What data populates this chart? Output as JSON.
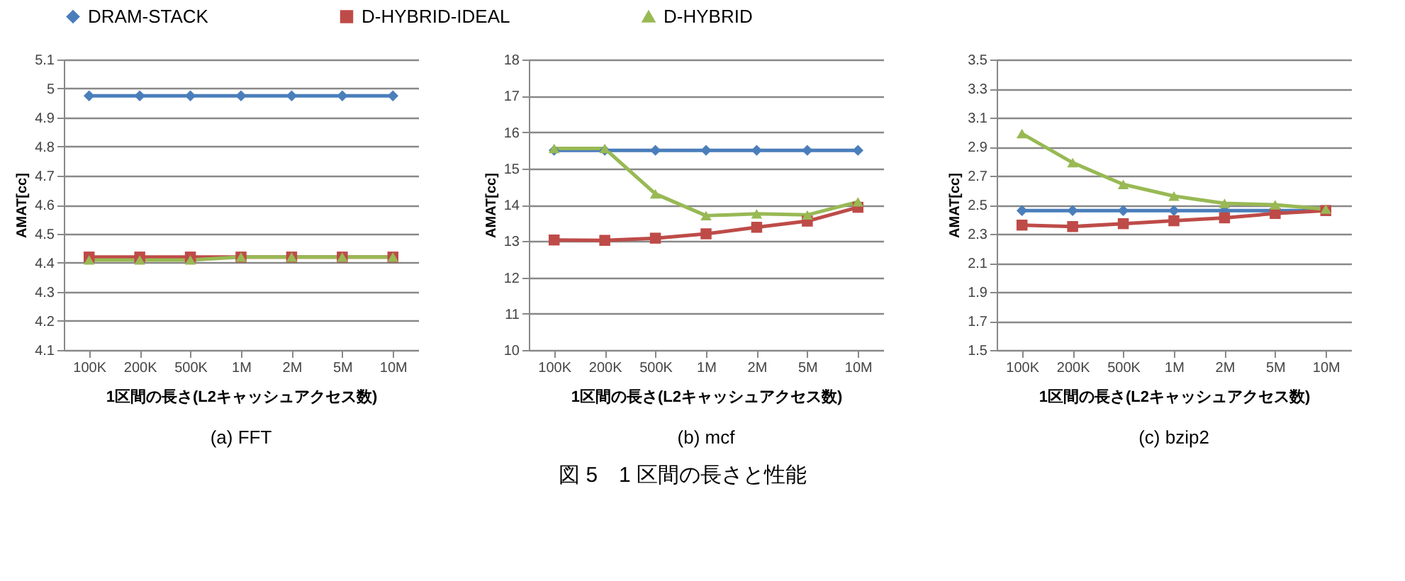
{
  "chart_data": [
    {
      "type": "line",
      "title": "(a)  FFT",
      "xlabel": "1区間の長さ(L2キャッシュアクセス数)",
      "ylabel": "AMAT[cc]",
      "categories": [
        "100K",
        "200K",
        "500K",
        "1M",
        "2M",
        "5M",
        "10M"
      ],
      "ylim": [
        4.1,
        5.1
      ],
      "yticks": [
        4.1,
        4.2,
        4.3,
        4.4,
        4.5,
        4.6,
        4.7,
        4.8,
        4.9,
        5,
        5.1
      ],
      "grid": "y",
      "legend": "top",
      "series": [
        {
          "name": "DRAM-STACK",
          "color": "#4a7ebb",
          "marker": "diamond",
          "values": [
            4.975,
            4.975,
            4.975,
            4.975,
            4.975,
            4.975,
            4.975
          ]
        },
        {
          "name": "D-HYBRID-IDEAL",
          "color": "#be4b48",
          "marker": "square",
          "values": [
            4.42,
            4.42,
            4.42,
            4.42,
            4.42,
            4.42,
            4.42
          ]
        },
        {
          "name": "D-HYBRID",
          "color": "#98b954",
          "marker": "triangle",
          "values": [
            4.41,
            4.41,
            4.41,
            4.42,
            4.42,
            4.42,
            4.42
          ]
        }
      ]
    },
    {
      "type": "line",
      "title": "(b)  mcf",
      "xlabel": "1区間の長さ(L2キャッシュアクセス数)",
      "ylabel": "AMAT[cc]",
      "categories": [
        "100K",
        "200K",
        "500K",
        "1M",
        "2M",
        "5M",
        "10M"
      ],
      "ylim": [
        10,
        18
      ],
      "yticks": [
        10,
        11,
        12,
        13,
        14,
        15,
        16,
        17,
        18
      ],
      "grid": "y",
      "legend": "top",
      "annotations": [
        "図 5　1 区間の長さと性能"
      ],
      "series": [
        {
          "name": "DRAM-STACK",
          "color": "#4a7ebb",
          "marker": "diamond",
          "values": [
            15.5,
            15.5,
            15.5,
            15.5,
            15.5,
            15.5,
            15.5
          ]
        },
        {
          "name": "D-HYBRID-IDEAL",
          "color": "#be4b48",
          "marker": "square",
          "values": [
            13.03,
            13.02,
            13.08,
            13.2,
            13.38,
            13.55,
            13.93
          ]
        },
        {
          "name": "D-HYBRID",
          "color": "#98b954",
          "marker": "triangle",
          "values": [
            15.55,
            15.55,
            14.3,
            13.7,
            13.75,
            13.72,
            14.08
          ]
        }
      ]
    },
    {
      "type": "line",
      "title": "(c)  bzip2",
      "xlabel": "1区間の長さ(L2キャッシュアクセス数)",
      "ylabel": "AMAT[cc]",
      "categories": [
        "100K",
        "200K",
        "500K",
        "1M",
        "2M",
        "5M",
        "10M"
      ],
      "ylim": [
        1.5,
        3.5
      ],
      "yticks": [
        1.5,
        1.7,
        1.9,
        2.1,
        2.3,
        2.5,
        2.7,
        2.9,
        3.1,
        3.3,
        3.5
      ],
      "grid": "y",
      "legend": "top",
      "series": [
        {
          "name": "DRAM-STACK",
          "color": "#4a7ebb",
          "marker": "diamond",
          "values": [
            2.46,
            2.46,
            2.46,
            2.46,
            2.46,
            2.46,
            2.46
          ]
        },
        {
          "name": "D-HYBRID-IDEAL",
          "color": "#be4b48",
          "marker": "square",
          "values": [
            2.36,
            2.35,
            2.37,
            2.39,
            2.41,
            2.44,
            2.46
          ]
        },
        {
          "name": "D-HYBRID",
          "color": "#98b954",
          "marker": "triangle",
          "values": [
            2.99,
            2.79,
            2.64,
            2.56,
            2.51,
            2.5,
            2.47
          ]
        }
      ]
    }
  ]
}
